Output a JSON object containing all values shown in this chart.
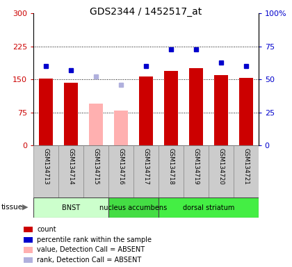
{
  "title": "GDS2344 / 1452517_at",
  "samples": [
    "GSM134713",
    "GSM134714",
    "GSM134715",
    "GSM134716",
    "GSM134717",
    "GSM134718",
    "GSM134719",
    "GSM134720",
    "GSM134721"
  ],
  "bar_values": [
    152,
    143,
    95,
    80,
    157,
    170,
    175,
    160,
    153
  ],
  "bar_absent": [
    false,
    false,
    true,
    true,
    false,
    false,
    false,
    false,
    false
  ],
  "rank_values": [
    60,
    57,
    52,
    46,
    60,
    73,
    73,
    63,
    60
  ],
  "rank_absent": [
    false,
    false,
    true,
    true,
    false,
    false,
    false,
    false,
    false
  ],
  "ylim_left": [
    0,
    300
  ],
  "ylim_right": [
    0,
    100
  ],
  "yticks_left": [
    0,
    75,
    150,
    225,
    300
  ],
  "ytick_labels_left": [
    "0",
    "75",
    "150",
    "225",
    "300"
  ],
  "yticks_right": [
    0,
    25,
    50,
    75,
    100
  ],
  "ytick_labels_right": [
    "0",
    "25",
    "50",
    "75",
    "100%"
  ],
  "bar_color_present": "#cc0000",
  "bar_color_absent": "#ffb0b0",
  "dot_color_present": "#0000cc",
  "dot_color_absent": "#b0b0dd",
  "tissue_groups": [
    {
      "label": "BNST",
      "start": 0,
      "end": 3,
      "color": "#ccffcc"
    },
    {
      "label": "nucleus accumbens",
      "start": 4,
      "end": 5,
      "color": "#44dd44"
    },
    {
      "label": "dorsal striatum",
      "start": 6,
      "end": 8,
      "color": "#44ee44"
    }
  ],
  "tissue_boundaries": [
    {
      "start": 0,
      "end": 3,
      "label": "BNST",
      "color": "#ccffcc"
    },
    {
      "start": 3,
      "end": 5,
      "label": "nucleus accumbens",
      "color": "#44dd44"
    },
    {
      "start": 5,
      "end": 9,
      "label": "dorsal striatum",
      "color": "#44ee44"
    }
  ],
  "bar_width": 0.55,
  "bg_plot": "#ffffff",
  "bg_sample_row": "#cccccc",
  "right_axis_color": "#0000cc",
  "left_axis_color": "#cc0000",
  "legend_items": [
    {
      "color": "#cc0000",
      "marker": "s",
      "label": "count"
    },
    {
      "color": "#0000cc",
      "marker": "s",
      "label": "percentile rank within the sample"
    },
    {
      "color": "#ffb0b0",
      "marker": "s",
      "label": "value, Detection Call = ABSENT"
    },
    {
      "color": "#b0b0dd",
      "marker": "s",
      "label": "rank, Detection Call = ABSENT"
    }
  ]
}
